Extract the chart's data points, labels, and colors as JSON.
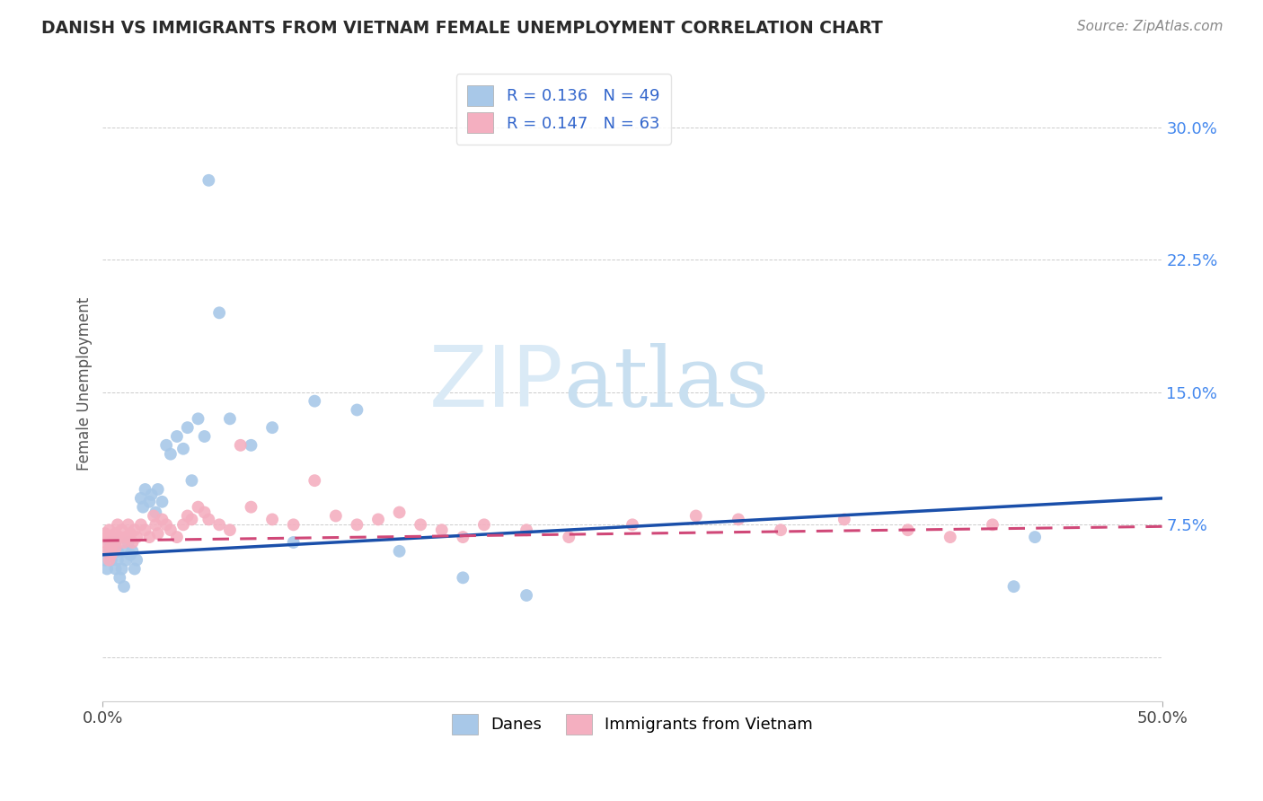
{
  "title": "DANISH VS IMMIGRANTS FROM VIETNAM FEMALE UNEMPLOYMENT CORRELATION CHART",
  "source": "Source: ZipAtlas.com",
  "ylabel": "Female Unemployment",
  "xlim": [
    0.0,
    0.5
  ],
  "ylim": [
    -0.025,
    0.335
  ],
  "ytick_vals": [
    0.0,
    0.075,
    0.15,
    0.225,
    0.3
  ],
  "ytick_labels": [
    "",
    "7.5%",
    "15.0%",
    "22.5%",
    "30.0%"
  ],
  "xtick_vals": [
    0.0,
    0.5
  ],
  "xtick_labels": [
    "0.0%",
    "50.0%"
  ],
  "legend_line1": "R = 0.136   N = 49",
  "legend_line2": "R = 0.147   N = 63",
  "bottom_label1": "Danes",
  "bottom_label2": "Immigrants from Vietnam",
  "danes_color": "#a8c8e8",
  "viet_color": "#f4afc0",
  "danes_line_color": "#1a4faa",
  "viet_line_color": "#d04878",
  "tick_color": "#4488ee",
  "background": "#ffffff",
  "grid_color": "#cccccc",
  "title_color": "#2a2a2a",
  "source_color": "#888888",
  "danes_x": [
    0.001,
    0.002,
    0.003,
    0.003,
    0.004,
    0.005,
    0.006,
    0.006,
    0.007,
    0.007,
    0.008,
    0.009,
    0.01,
    0.01,
    0.011,
    0.012,
    0.013,
    0.014,
    0.015,
    0.016,
    0.018,
    0.019,
    0.02,
    0.022,
    0.023,
    0.025,
    0.026,
    0.028,
    0.03,
    0.032,
    0.035,
    0.038,
    0.04,
    0.042,
    0.045,
    0.048,
    0.05,
    0.055,
    0.06,
    0.07,
    0.08,
    0.09,
    0.1,
    0.12,
    0.14,
    0.17,
    0.2,
    0.43,
    0.44
  ],
  "danes_y": [
    0.055,
    0.05,
    0.06,
    0.065,
    0.055,
    0.06,
    0.05,
    0.065,
    0.055,
    0.06,
    0.045,
    0.05,
    0.06,
    0.04,
    0.055,
    0.065,
    0.058,
    0.06,
    0.05,
    0.055,
    0.09,
    0.085,
    0.095,
    0.088,
    0.092,
    0.082,
    0.095,
    0.088,
    0.12,
    0.115,
    0.125,
    0.118,
    0.13,
    0.1,
    0.135,
    0.125,
    0.27,
    0.195,
    0.135,
    0.12,
    0.13,
    0.065,
    0.145,
    0.14,
    0.06,
    0.045,
    0.035,
    0.04,
    0.068
  ],
  "viet_x": [
    0.001,
    0.001,
    0.002,
    0.002,
    0.003,
    0.003,
    0.004,
    0.004,
    0.005,
    0.005,
    0.006,
    0.006,
    0.007,
    0.008,
    0.009,
    0.01,
    0.011,
    0.012,
    0.013,
    0.014,
    0.015,
    0.016,
    0.018,
    0.02,
    0.022,
    0.024,
    0.025,
    0.026,
    0.028,
    0.03,
    0.032,
    0.035,
    0.038,
    0.04,
    0.042,
    0.045,
    0.048,
    0.05,
    0.055,
    0.06,
    0.065,
    0.07,
    0.08,
    0.09,
    0.1,
    0.11,
    0.12,
    0.13,
    0.14,
    0.15,
    0.16,
    0.17,
    0.18,
    0.2,
    0.22,
    0.25,
    0.28,
    0.3,
    0.32,
    0.35,
    0.38,
    0.4,
    0.42
  ],
  "viet_y": [
    0.065,
    0.07,
    0.06,
    0.068,
    0.055,
    0.072,
    0.062,
    0.058,
    0.068,
    0.065,
    0.07,
    0.062,
    0.075,
    0.068,
    0.072,
    0.065,
    0.068,
    0.075,
    0.07,
    0.065,
    0.072,
    0.068,
    0.075,
    0.072,
    0.068,
    0.08,
    0.075,
    0.07,
    0.078,
    0.075,
    0.072,
    0.068,
    0.075,
    0.08,
    0.078,
    0.085,
    0.082,
    0.078,
    0.075,
    0.072,
    0.12,
    0.085,
    0.078,
    0.075,
    0.1,
    0.08,
    0.075,
    0.078,
    0.082,
    0.075,
    0.072,
    0.068,
    0.075,
    0.072,
    0.068,
    0.075,
    0.08,
    0.078,
    0.072,
    0.078,
    0.072,
    0.068,
    0.075
  ],
  "danes_line_x0": 0.0,
  "danes_line_y0": 0.058,
  "danes_line_x1": 0.5,
  "danes_line_y1": 0.09,
  "viet_line_x0": 0.0,
  "viet_line_y0": 0.066,
  "viet_line_x1": 0.5,
  "viet_line_y1": 0.074
}
